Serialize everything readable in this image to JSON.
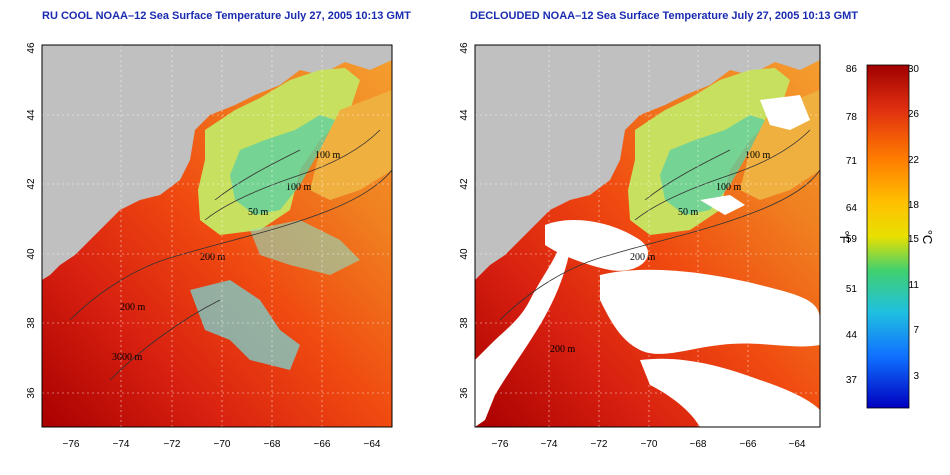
{
  "panels": [
    {
      "id": "left",
      "title": "RU COOL NOAA–12 Sea Surface Temperature July 27, 2005 10:13 GMT",
      "contour_labels": [
        "100 m",
        "100 m",
        "50 m",
        "200 m",
        "200 m",
        "3000 m"
      ],
      "clouds": false
    },
    {
      "id": "right",
      "title": "DECLOUDED NOAA–12 Sea Surface Temperature July 27, 2005 10:13 GMT",
      "contour_labels": [
        "100 m",
        "100 m",
        "50 m",
        "200 m",
        "200 m"
      ],
      "clouds": true
    }
  ],
  "axes": {
    "lon_ticks": [
      "−76",
      "−74",
      "−72",
      "−70",
      "−68",
      "−66",
      "−64"
    ],
    "lat_ticks": [
      "36",
      "38",
      "40",
      "42",
      "44",
      "46"
    ],
    "lon_range": [
      -77,
      -63
    ],
    "lat_range": [
      35,
      46
    ]
  },
  "colorbar": {
    "fahrenheit_ticks": [
      "86",
      "78",
      "71",
      "64",
      "59",
      "51",
      "44",
      "37"
    ],
    "celsius_ticks": [
      "30",
      "26",
      "22",
      "18",
      "15",
      "11",
      "7",
      "3"
    ],
    "fahrenheit_unit": "°F",
    "celsius_unit": "°C",
    "range_c": [
      0,
      30
    ],
    "colors_top_to_bottom": [
      "#a00000",
      "#e03010",
      "#ff7a00",
      "#ffc000",
      "#e8e000",
      "#40d070",
      "#20c0e0",
      "#1070ff",
      "#0000c0"
    ]
  },
  "colors": {
    "title": "#1a2bb0",
    "land": "#c0c0c0",
    "cloud": "#ffffff"
  }
}
